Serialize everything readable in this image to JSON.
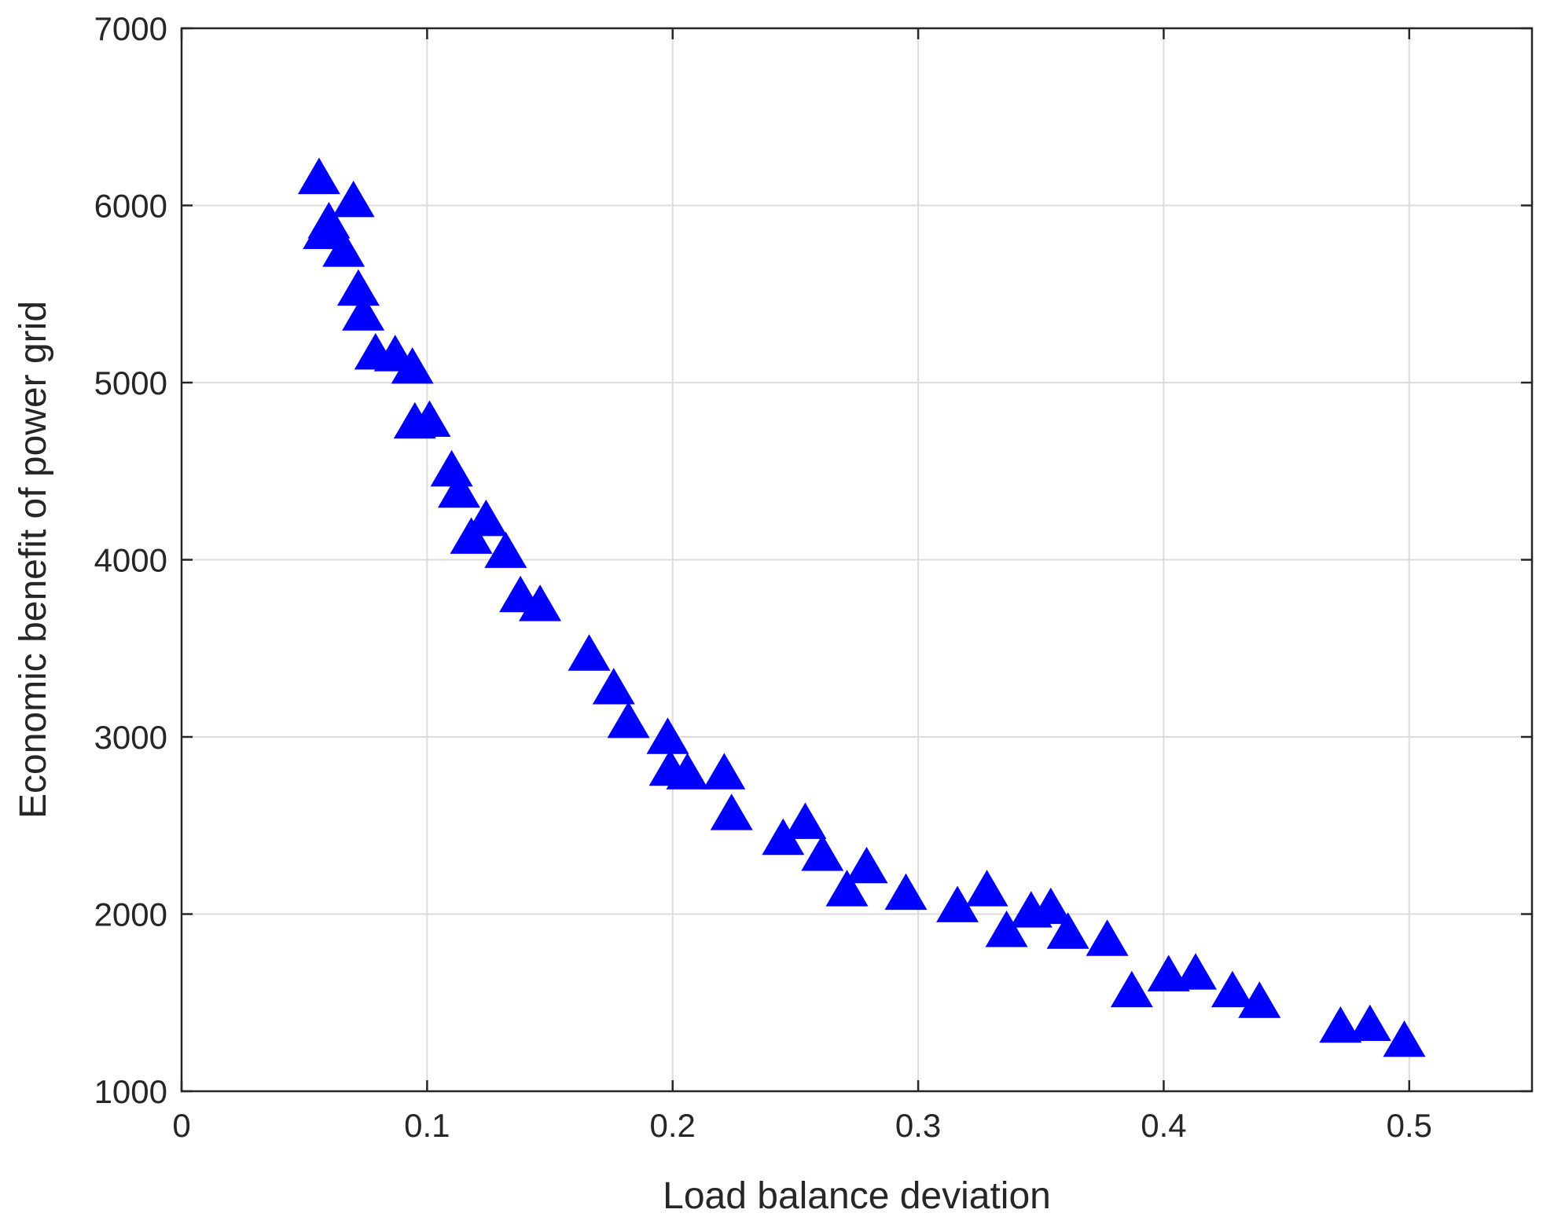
{
  "chart_data": {
    "type": "scatter",
    "xlabel": "Load balance deviation",
    "ylabel": "Economic benefit of power grid",
    "xlim": [
      0,
      0.55
    ],
    "ylim": [
      1000,
      7000
    ],
    "xticks": [
      "0",
      "0.1",
      "0.2",
      "0.3",
      "0.4",
      "0.5"
    ],
    "xtick_values": [
      0,
      0.1,
      0.2,
      0.3,
      0.4,
      0.5
    ],
    "yticks": [
      "1000",
      "2000",
      "3000",
      "4000",
      "5000",
      "6000",
      "7000"
    ],
    "ytick_values": [
      1000,
      2000,
      3000,
      4000,
      5000,
      6000,
      7000
    ],
    "grid": true,
    "marker": "triangle-up",
    "marker_color": "#0000ff",
    "series": [
      {
        "points": [
          [
            0.056,
            6150
          ],
          [
            0.07,
            6020
          ],
          [
            0.06,
            5900
          ],
          [
            0.058,
            5840
          ],
          [
            0.066,
            5740
          ],
          [
            0.072,
            5520
          ],
          [
            0.074,
            5380
          ],
          [
            0.079,
            5160
          ],
          [
            0.087,
            5150
          ],
          [
            0.094,
            5080
          ],
          [
            0.095,
            4770
          ],
          [
            0.101,
            4780
          ],
          [
            0.11,
            4500
          ],
          [
            0.113,
            4380
          ],
          [
            0.124,
            4220
          ],
          [
            0.118,
            4120
          ],
          [
            0.132,
            4040
          ],
          [
            0.138,
            3790
          ],
          [
            0.146,
            3740
          ],
          [
            0.166,
            3460
          ],
          [
            0.176,
            3270
          ],
          [
            0.182,
            3080
          ],
          [
            0.198,
            2990
          ],
          [
            0.199,
            2810
          ],
          [
            0.206,
            2790
          ],
          [
            0.221,
            2790
          ],
          [
            0.224,
            2560
          ],
          [
            0.245,
            2420
          ],
          [
            0.254,
            2510
          ],
          [
            0.261,
            2330
          ],
          [
            0.271,
            2130
          ],
          [
            0.279,
            2260
          ],
          [
            0.295,
            2110
          ],
          [
            0.316,
            2040
          ],
          [
            0.328,
            2130
          ],
          [
            0.336,
            1900
          ],
          [
            0.346,
            2010
          ],
          [
            0.354,
            2030
          ],
          [
            0.361,
            1890
          ],
          [
            0.377,
            1850
          ],
          [
            0.387,
            1560
          ],
          [
            0.402,
            1650
          ],
          [
            0.413,
            1660
          ],
          [
            0.428,
            1560
          ],
          [
            0.439,
            1500
          ],
          [
            0.472,
            1360
          ],
          [
            0.484,
            1370
          ],
          [
            0.498,
            1280
          ]
        ]
      }
    ]
  }
}
